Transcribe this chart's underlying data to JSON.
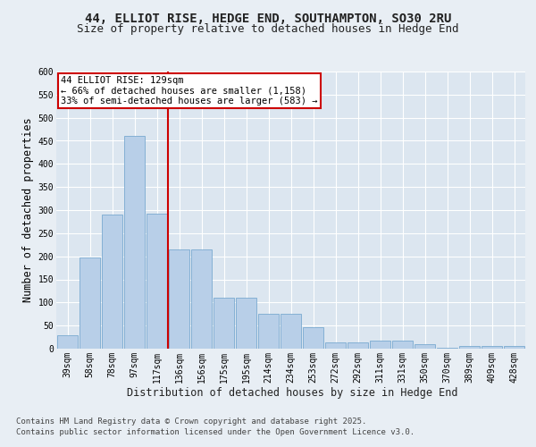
{
  "title_line1": "44, ELLIOT RISE, HEDGE END, SOUTHAMPTON, SO30 2RU",
  "title_line2": "Size of property relative to detached houses in Hedge End",
  "xlabel": "Distribution of detached houses by size in Hedge End",
  "ylabel": "Number of detached properties",
  "categories": [
    "39sqm",
    "58sqm",
    "78sqm",
    "97sqm",
    "117sqm",
    "136sqm",
    "156sqm",
    "175sqm",
    "195sqm",
    "214sqm",
    "234sqm",
    "253sqm",
    "272sqm",
    "292sqm",
    "311sqm",
    "331sqm",
    "350sqm",
    "370sqm",
    "389sqm",
    "409sqm",
    "428sqm"
  ],
  "values": [
    30,
    197,
    290,
    460,
    293,
    215,
    215,
    110,
    110,
    75,
    75,
    47,
    13,
    13,
    17,
    17,
    9,
    2,
    5,
    5,
    5
  ],
  "bar_color": "#b8cfe8",
  "bar_edge_color": "#7aaad0",
  "vline_color": "#cc0000",
  "vline_bar_index": 4,
  "annotation_text": "44 ELLIOT RISE: 129sqm\n← 66% of detached houses are smaller (1,158)\n33% of semi-detached houses are larger (583) →",
  "annotation_box_color": "#ffffff",
  "annotation_box_edge": "#cc0000",
  "bg_color": "#e8eef4",
  "plot_bg_color": "#dce6f0",
  "grid_color": "#ffffff",
  "ylim": [
    0,
    600
  ],
  "yticks": [
    0,
    50,
    100,
    150,
    200,
    250,
    300,
    350,
    400,
    450,
    500,
    550,
    600
  ],
  "footer_line1": "Contains HM Land Registry data © Crown copyright and database right 2025.",
  "footer_line2": "Contains public sector information licensed under the Open Government Licence v3.0.",
  "title_fontsize": 10,
  "subtitle_fontsize": 9,
  "tick_fontsize": 7,
  "label_fontsize": 8.5,
  "footer_fontsize": 6.5,
  "annotation_fontsize": 7.5
}
